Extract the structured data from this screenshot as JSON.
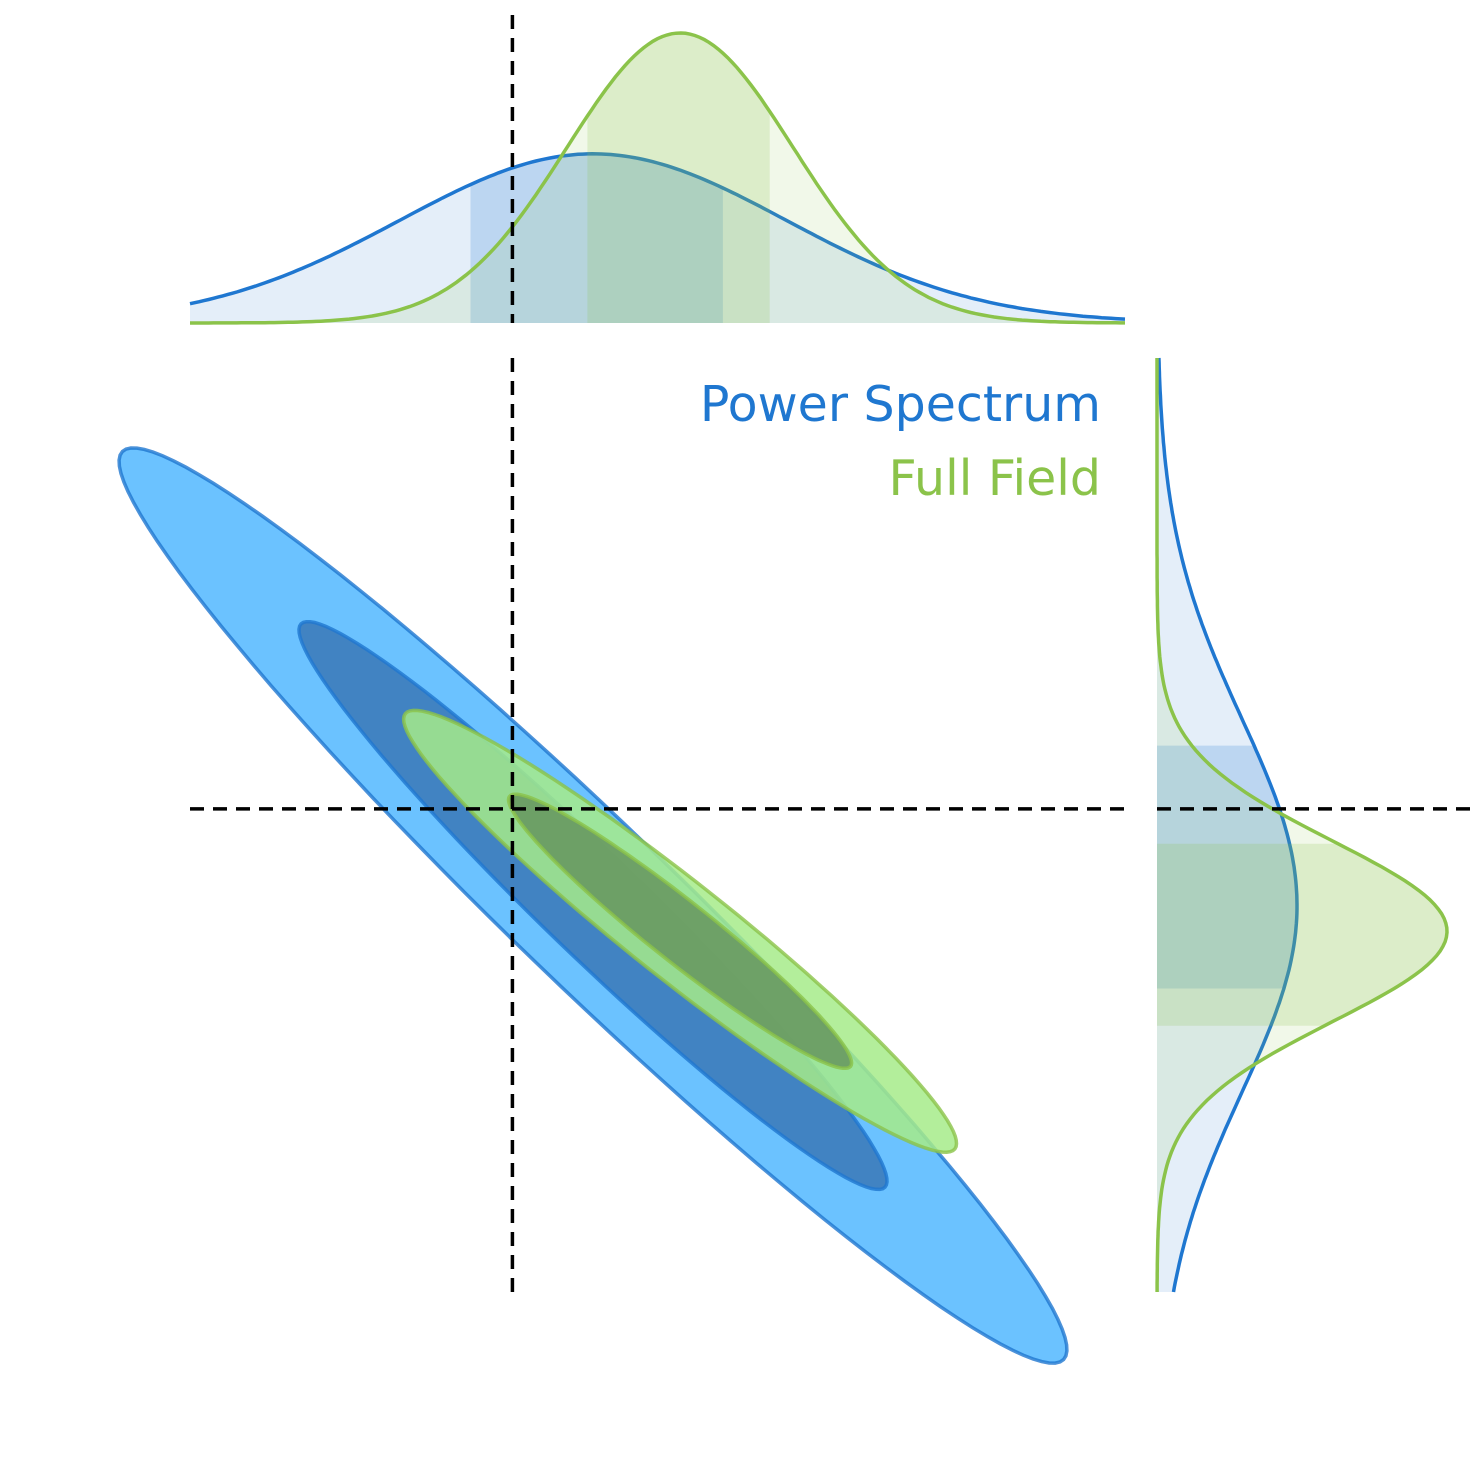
{
  "chart_data": {
    "type": "contour",
    "legend": [
      {
        "label": "Power Spectrum",
        "color": "#1f77d0"
      },
      {
        "label": "Full Field",
        "color": "#8bc34a"
      }
    ],
    "legend_position": "top-right",
    "axes_visible": false,
    "grid": false,
    "reference_lines": {
      "x": 0.0,
      "y": 0.0,
      "style": "dashed",
      "color": "#000000"
    },
    "x_range": [
      -1.0,
      1.9
    ],
    "y_range": [
      -1.5,
      1.4
    ],
    "series": [
      {
        "name": "Power Spectrum",
        "color": "#1f77d0",
        "fill_outer": "#63bfff",
        "fill_inner": "#3f7fbf",
        "mean": [
          0.25,
          -0.3
        ],
        "sigma": [
          0.6,
          0.58
        ],
        "correlation": -0.97,
        "marginal_x_interval": [
          -0.13,
          0.66
        ],
        "marginal_y_interval": [
          -0.56,
          0.2
        ]
      },
      {
        "name": "Full Field",
        "color": "#8bc34a",
        "fill_outer": "#a6eb8a",
        "fill_inner": "#66955e",
        "mean": [
          0.52,
          -0.38
        ],
        "sigma": [
          0.35,
          0.28
        ],
        "correlation": -0.96,
        "marginal_x_interval": [
          0.22,
          0.8
        ],
        "marginal_y_interval": [
          -0.68,
          -0.1
        ]
      }
    ]
  }
}
